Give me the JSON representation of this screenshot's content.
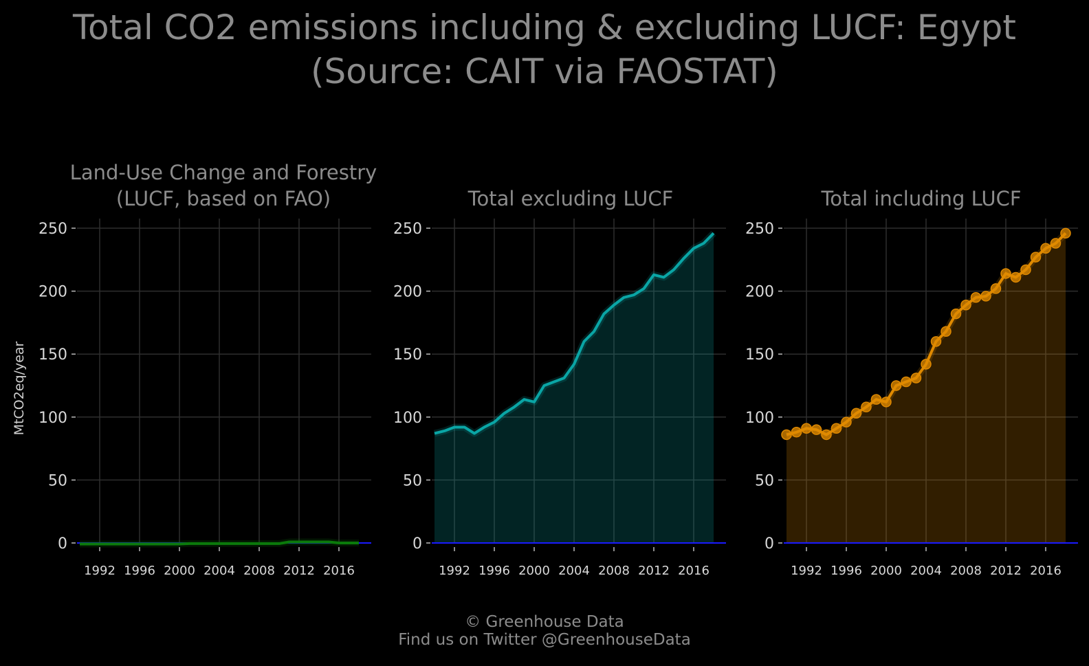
{
  "title": {
    "line1": "Total CO2 emissions including & excluding LUCF: Egypt",
    "line2": "(Source: CAIT via FAOSTAT)"
  },
  "ylabel": "MtCO2eq/year",
  "credit": {
    "line1": "© Greenhouse Data",
    "line2": "Find us on Twitter @GreenhouseData"
  },
  "colors": {
    "background": "#000000",
    "grid": "#2e2e2e",
    "zero_line": "#1a1aff",
    "lucf": "#0b7a0b",
    "excl": "#0aa5a5",
    "incl": "#e08a00"
  },
  "chart_data": [
    {
      "type": "area",
      "title_line1": "Land-Use Change and Forestry",
      "title_line2": "(LUCF, based on FAO)",
      "x": [
        1990,
        1991,
        1992,
        1993,
        1994,
        1995,
        1996,
        1997,
        1998,
        1999,
        2000,
        2001,
        2002,
        2003,
        2004,
        2005,
        2006,
        2007,
        2008,
        2009,
        2010,
        2011,
        2012,
        2013,
        2014,
        2015,
        2016,
        2017,
        2018
      ],
      "values": [
        -0.8,
        -0.8,
        -0.8,
        -0.8,
        -0.8,
        -0.8,
        -0.8,
        -0.8,
        -0.8,
        -0.8,
        -0.8,
        -0.5,
        -0.5,
        -0.5,
        -0.5,
        -0.5,
        -0.5,
        -0.5,
        -0.5,
        -0.5,
        -0.5,
        0.8,
        0.8,
        0.8,
        0.8,
        0.8,
        0.0,
        0.0,
        0.0
      ],
      "series_color": "lucf",
      "ylim": [
        0,
        250
      ],
      "xlim": [
        1990,
        2018
      ],
      "yticks": [
        0,
        50,
        100,
        150,
        200,
        250
      ],
      "xticks": [
        1992,
        1996,
        2000,
        2004,
        2008,
        2012,
        2016
      ],
      "markers": false
    },
    {
      "type": "area",
      "title_line1": "",
      "title_line2": "Total excluding LUCF",
      "x": [
        1990,
        1991,
        1992,
        1993,
        1994,
        1995,
        1996,
        1997,
        1998,
        1999,
        2000,
        2001,
        2002,
        2003,
        2004,
        2005,
        2006,
        2007,
        2008,
        2009,
        2010,
        2011,
        2012,
        2013,
        2014,
        2015,
        2016,
        2017,
        2018
      ],
      "values": [
        87,
        89,
        92,
        92,
        87,
        92,
        96,
        103,
        108,
        114,
        112,
        125,
        128,
        131,
        142,
        160,
        168,
        182,
        189,
        195,
        197,
        202,
        213,
        211,
        217,
        226,
        234,
        238,
        246
      ],
      "series_color": "excl",
      "ylim": [
        0,
        250
      ],
      "xlim": [
        1990,
        2018
      ],
      "yticks": [
        0,
        50,
        100,
        150,
        200,
        250
      ],
      "xticks": [
        1992,
        1996,
        2000,
        2004,
        2008,
        2012,
        2016
      ],
      "markers": false
    },
    {
      "type": "area",
      "title_line1": "",
      "title_line2": "Total including LUCF",
      "x": [
        1990,
        1991,
        1992,
        1993,
        1994,
        1995,
        1996,
        1997,
        1998,
        1999,
        2000,
        2001,
        2002,
        2003,
        2004,
        2005,
        2006,
        2007,
        2008,
        2009,
        2010,
        2011,
        2012,
        2013,
        2014,
        2015,
        2016,
        2017,
        2018
      ],
      "values": [
        86,
        88,
        91,
        90,
        86,
        91,
        96,
        103,
        108,
        114,
        112,
        125,
        128,
        131,
        142,
        160,
        168,
        182,
        189,
        195,
        196,
        202,
        214,
        211,
        217,
        227,
        234,
        238,
        246
      ],
      "series_color": "incl",
      "ylim": [
        0,
        250
      ],
      "xlim": [
        1990,
        2018
      ],
      "yticks": [
        0,
        50,
        100,
        150,
        200,
        250
      ],
      "xticks": [
        1992,
        1996,
        2000,
        2004,
        2008,
        2012,
        2016
      ],
      "markers": true
    }
  ]
}
